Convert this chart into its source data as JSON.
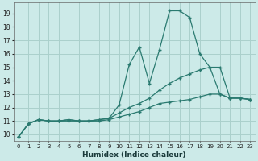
{
  "xlabel": "Humidex (Indice chaleur)",
  "ylabel": "",
  "bg_color": "#cceae8",
  "grid_color": "#aad0cc",
  "line_color": "#2a7a70",
  "xlim": [
    -0.5,
    23.5
  ],
  "ylim": [
    9.5,
    19.8
  ],
  "xticks": [
    0,
    1,
    2,
    3,
    4,
    5,
    6,
    7,
    8,
    9,
    10,
    11,
    12,
    13,
    14,
    15,
    16,
    17,
    18,
    19,
    20,
    21,
    22,
    23
  ],
  "yticks": [
    10,
    11,
    12,
    13,
    14,
    15,
    16,
    17,
    18,
    19
  ],
  "series1_x": [
    0,
    1,
    2,
    3,
    4,
    5,
    6,
    7,
    8,
    9,
    10,
    11,
    12,
    13,
    14,
    15,
    16,
    17,
    18,
    19,
    20,
    21,
    22,
    23
  ],
  "series1_y": [
    9.8,
    10.8,
    11.1,
    11.0,
    11.0,
    11.1,
    11.0,
    11.0,
    11.1,
    11.2,
    12.2,
    15.2,
    16.5,
    13.8,
    16.3,
    19.2,
    19.2,
    18.7,
    16.0,
    15.0,
    13.0,
    12.7,
    12.7,
    12.6
  ],
  "series2_x": [
    0,
    1,
    2,
    3,
    4,
    5,
    6,
    7,
    8,
    9,
    10,
    11,
    12,
    13,
    14,
    15,
    16,
    17,
    18,
    19,
    20,
    21,
    22,
    23
  ],
  "series2_y": [
    9.8,
    10.8,
    11.1,
    11.0,
    11.0,
    11.1,
    11.0,
    11.0,
    11.1,
    11.2,
    11.6,
    12.0,
    12.3,
    12.7,
    13.3,
    13.8,
    14.2,
    14.5,
    14.8,
    15.0,
    15.0,
    12.7,
    12.7,
    12.6
  ],
  "series3_x": [
    0,
    1,
    2,
    3,
    4,
    5,
    6,
    7,
    8,
    9,
    10,
    11,
    12,
    13,
    14,
    15,
    16,
    17,
    18,
    19,
    20,
    21,
    22,
    23
  ],
  "series3_y": [
    9.8,
    10.8,
    11.1,
    11.0,
    11.0,
    11.0,
    11.0,
    11.0,
    11.0,
    11.1,
    11.3,
    11.5,
    11.7,
    12.0,
    12.3,
    12.4,
    12.5,
    12.6,
    12.8,
    13.0,
    13.0,
    12.7,
    12.7,
    12.6
  ]
}
